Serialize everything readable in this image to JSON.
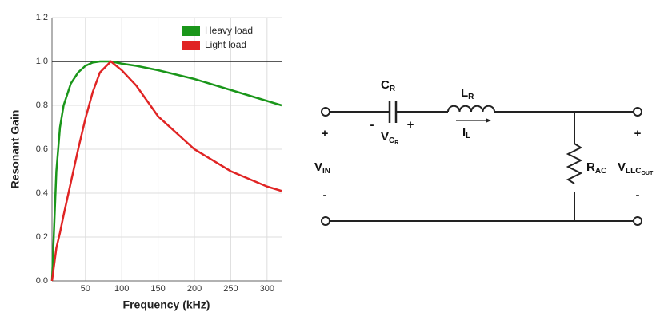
{
  "chart_data": {
    "type": "line",
    "xlabel": "Frequency (kHz)",
    "ylabel": "Resonant Gain",
    "x": [
      4,
      10,
      15,
      20,
      30,
      40,
      50,
      60,
      70,
      85,
      100,
      120,
      150,
      200,
      250,
      300,
      320
    ],
    "series": [
      {
        "name": "Heavy load",
        "color": "#1a961a",
        "values": [
          0,
          0.5,
          0.7,
          0.8,
          0.9,
          0.95,
          0.98,
          0.995,
          1.0,
          1.0,
          0.99,
          0.98,
          0.96,
          0.92,
          0.87,
          0.82,
          0.8
        ]
      },
      {
        "name": "Light load",
        "color": "#e02424",
        "values": [
          0,
          0.15,
          0.22,
          0.3,
          0.45,
          0.6,
          0.74,
          0.86,
          0.95,
          1.0,
          0.96,
          0.89,
          0.75,
          0.6,
          0.5,
          0.43,
          0.41
        ]
      }
    ],
    "xlim": [
      4,
      320
    ],
    "xticks": [
      50,
      100,
      150,
      200,
      250,
      300
    ],
    "ylim": [
      0,
      1.2
    ],
    "yticks": [
      {
        "value": 0,
        "label": "0.0"
      },
      0.2,
      0.4,
      0.6,
      0.8,
      {
        "value": 1,
        "label": "1.0"
      },
      1.2
    ],
    "hline": 1,
    "grid": true,
    "legend": "top-right"
  },
  "circuit": {
    "cr": {
      "main": "C",
      "sub": "R"
    },
    "lr": {
      "main": "L",
      "sub": "R"
    },
    "vcr": {
      "main": "V",
      "sub": "C",
      "subsub": "R"
    },
    "il": {
      "main": "I",
      "sub": "L"
    },
    "vin": {
      "main": "V",
      "sub": "IN"
    },
    "rac": {
      "main": "R",
      "sub": "AC"
    },
    "vout": {
      "main": "V",
      "sub": "LLC",
      "subsub": "OUT"
    },
    "signs": [
      "-",
      "+",
      "+",
      "-",
      "+",
      "-"
    ]
  }
}
